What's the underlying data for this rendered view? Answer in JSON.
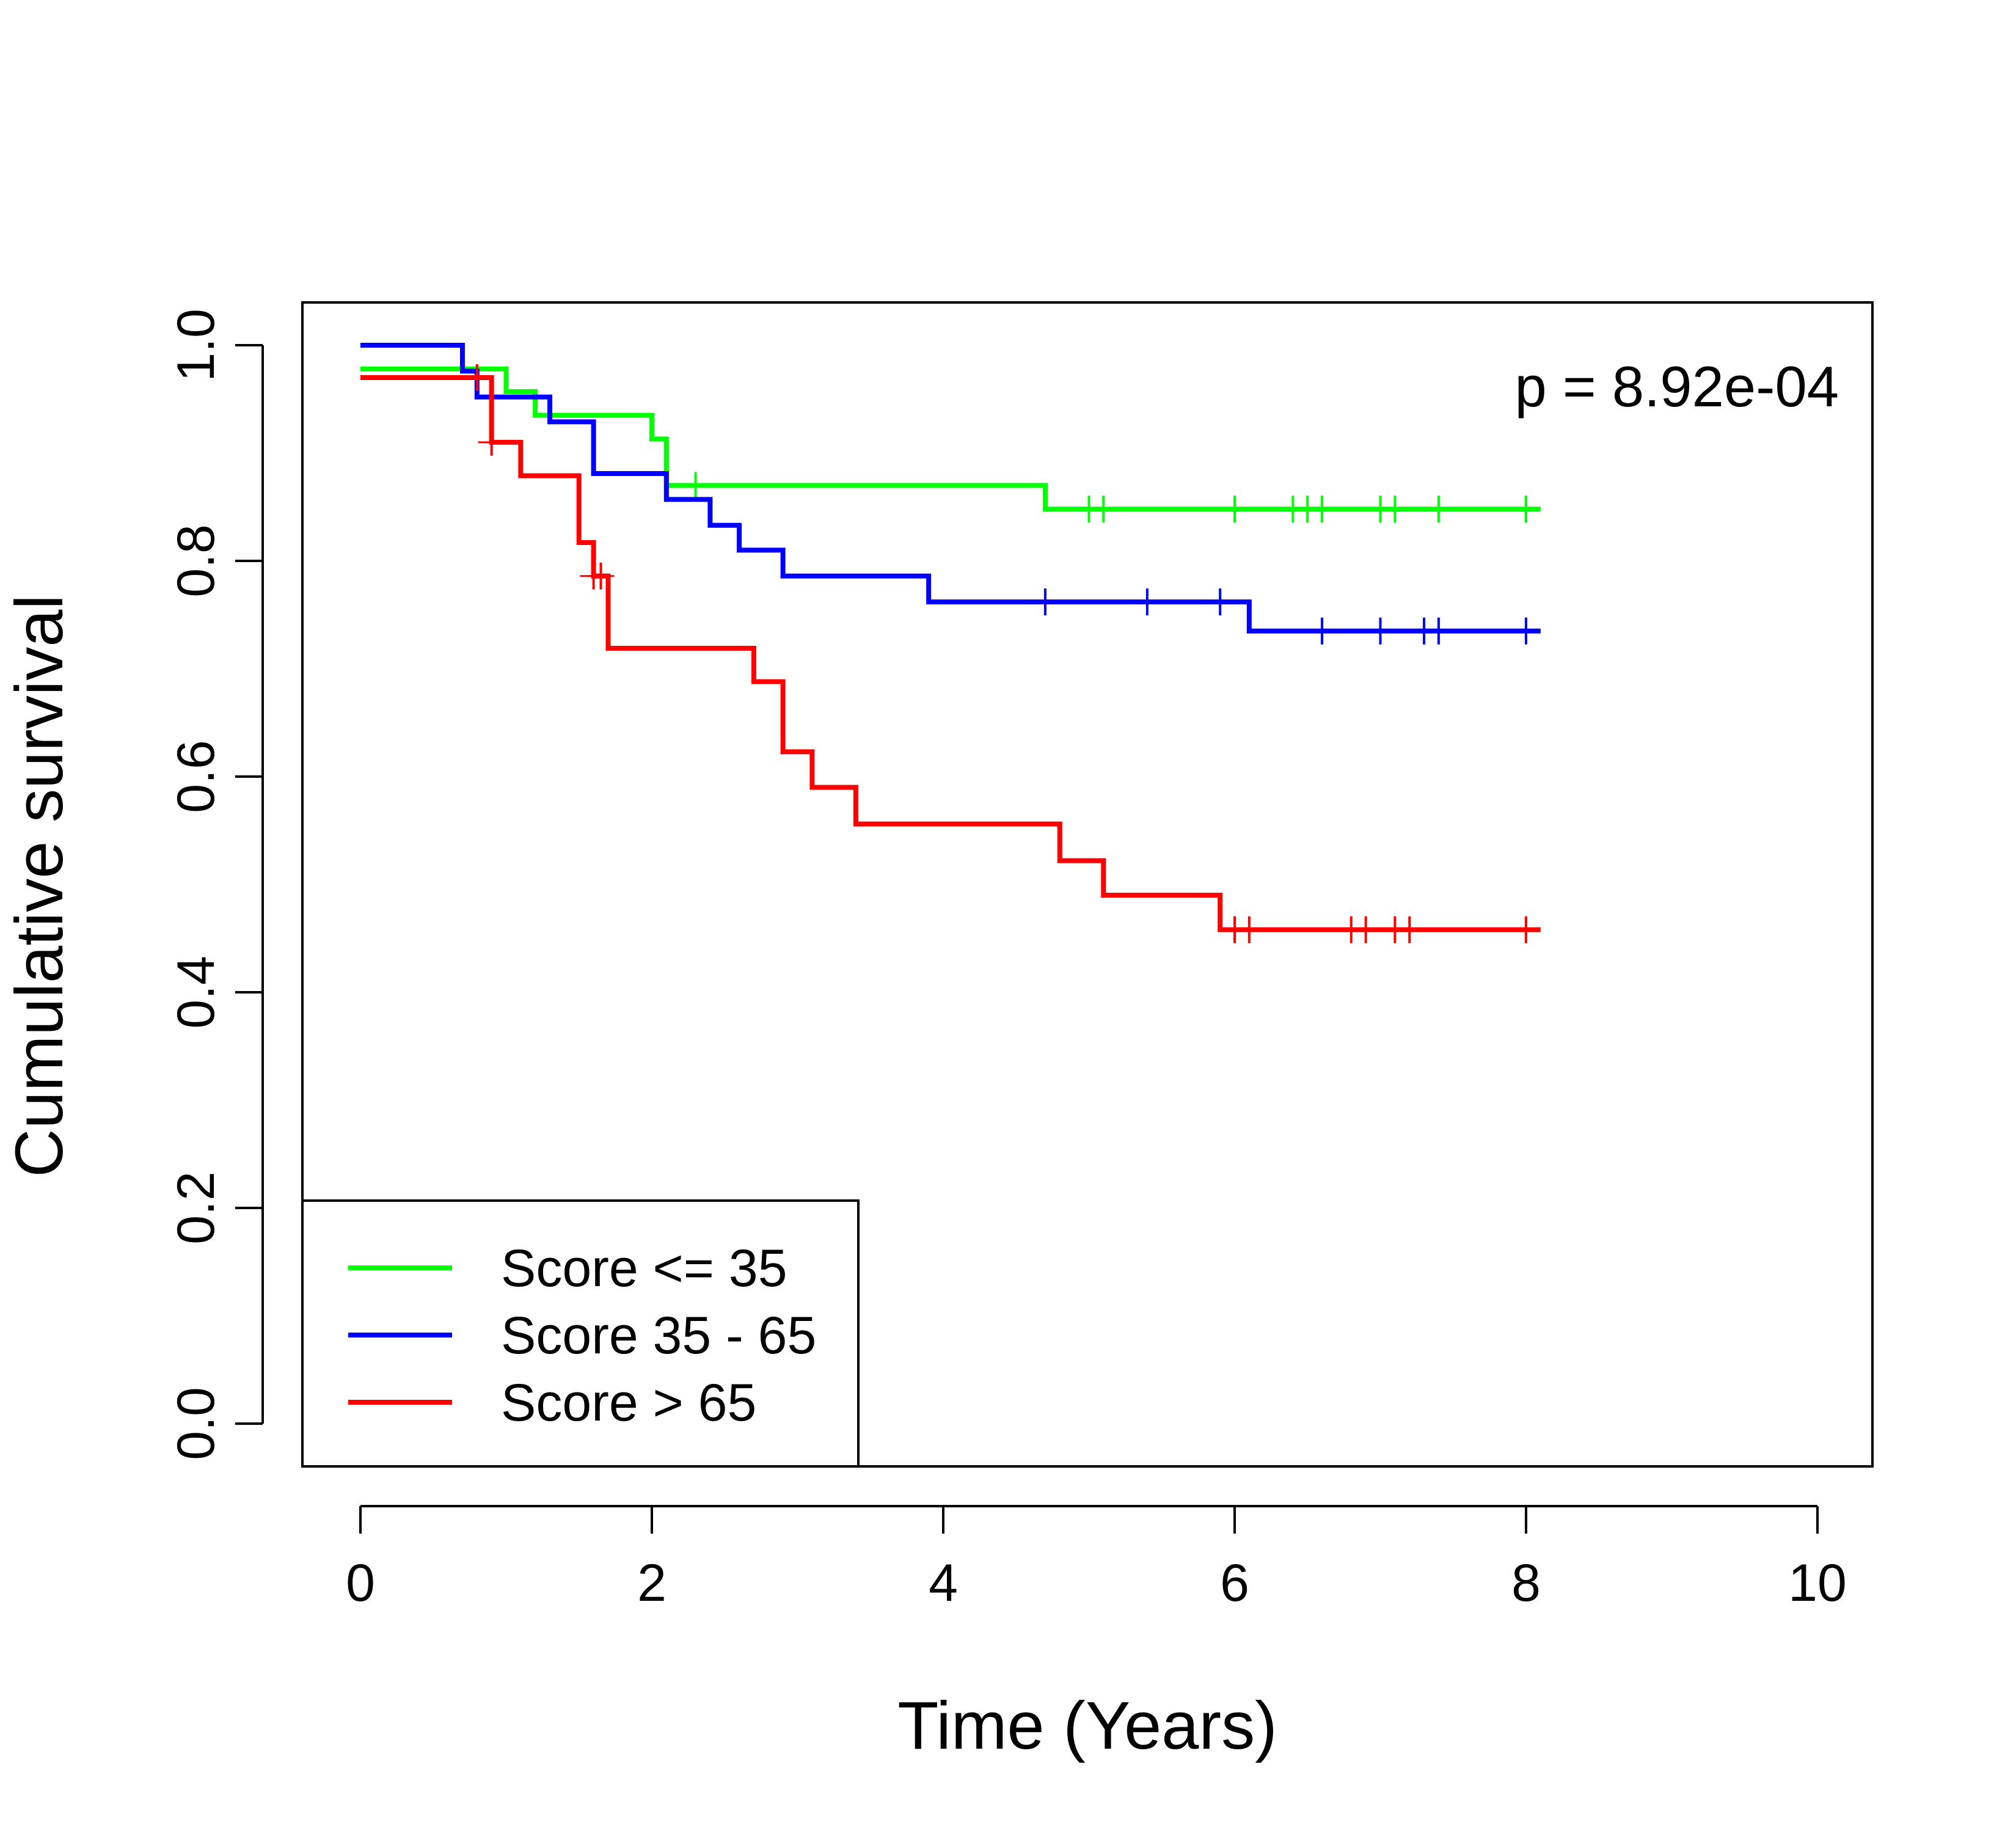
{
  "chart_data": {
    "type": "line",
    "subtype": "kaplan-meier-step",
    "title": "",
    "xlabel": "Time (Years)",
    "ylabel": "Cumulative survival",
    "xlim": [
      0,
      10
    ],
    "ylim": [
      0,
      1
    ],
    "x_ticks": [
      0,
      2,
      4,
      6,
      8,
      10
    ],
    "x_tick_labels": [
      "0",
      "2",
      "4",
      "6",
      "8",
      "10"
    ],
    "y_ticks": [
      0,
      0.2,
      0.4,
      0.6,
      0.8,
      1.0
    ],
    "y_tick_labels": [
      "0.0",
      "0.2",
      "0.4",
      "0.6",
      "0.8",
      "1.0"
    ],
    "grid": false,
    "legend_position": "bottom-left",
    "annotation": "p = 8.92e-04",
    "series": [
      {
        "name": "Score <= 35",
        "color": "#00ff00",
        "steps": [
          [
            0,
            0.978
          ],
          [
            1.0,
            0.957
          ],
          [
            1.2,
            0.935
          ],
          [
            2.0,
            0.913
          ],
          [
            2.1,
            0.891
          ],
          [
            2.1,
            0.87
          ],
          [
            4.7,
            0.848
          ]
        ],
        "end_x": 8.1,
        "censor_times": [
          2.3,
          5.0,
          5.1,
          6.0,
          6.4,
          6.5,
          6.6,
          7.0,
          7.1,
          7.4,
          8.0
        ]
      },
      {
        "name": "Score 35 - 65",
        "color": "#0000ff",
        "steps": [
          [
            0,
            1.0
          ],
          [
            0.7,
            0.976
          ],
          [
            0.8,
            0.952
          ],
          [
            1.3,
            0.929
          ],
          [
            1.6,
            0.881
          ],
          [
            2.1,
            0.857
          ],
          [
            2.4,
            0.833
          ],
          [
            2.6,
            0.81
          ],
          [
            2.9,
            0.786
          ],
          [
            3.9,
            0.762
          ],
          [
            6.1,
            0.735
          ]
        ],
        "end_x": 8.1,
        "censor_times": [
          4.7,
          5.4,
          5.9,
          6.6,
          7.0,
          7.3,
          7.4,
          8.0
        ]
      },
      {
        "name": "Score > 65",
        "color": "#ff0000",
        "steps": [
          [
            0,
            0.97
          ],
          [
            0.9,
            0.91
          ],
          [
            1.1,
            0.879
          ],
          [
            1.5,
            0.817
          ],
          [
            1.6,
            0.786
          ],
          [
            1.7,
            0.719
          ],
          [
            2.7,
            0.688
          ],
          [
            2.9,
            0.623
          ],
          [
            3.1,
            0.59
          ],
          [
            3.4,
            0.556
          ],
          [
            4.8,
            0.522
          ],
          [
            5.1,
            0.49
          ],
          [
            5.9,
            0.458
          ]
        ],
        "end_x": 8.1,
        "censor_times": [
          0.8,
          0.9,
          1.6,
          1.65,
          6.0,
          6.1,
          6.8,
          6.9,
          7.1,
          7.2,
          8.0
        ]
      }
    ]
  }
}
